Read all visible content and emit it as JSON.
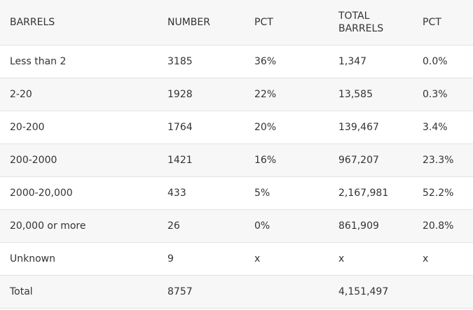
{
  "table": {
    "headers": [
      "BARRELS",
      "NUMBER",
      "PCT",
      "TOTAL BARRELS",
      "PCT"
    ],
    "rows": [
      [
        "Less than 2",
        "3185",
        "36%",
        "1,347",
        "0.0%"
      ],
      [
        "2-20",
        "1928",
        "22%",
        "13,585",
        "0.3%"
      ],
      [
        "20-200",
        "1764",
        "20%",
        "139,467",
        "3.4%"
      ],
      [
        "200-2000",
        "1421",
        "16%",
        "967,207",
        "23.3%"
      ],
      [
        "2000-20,000",
        "433",
        "5%",
        "2,167,981",
        "52.2%"
      ],
      [
        "20,000 or more",
        "26",
        "0%",
        "861,909",
        "20.8%"
      ],
      [
        "Unknown",
        "9",
        "x",
        "x",
        "x"
      ],
      [
        "Total",
        "8757",
        "",
        "4,151,497",
        ""
      ]
    ]
  }
}
